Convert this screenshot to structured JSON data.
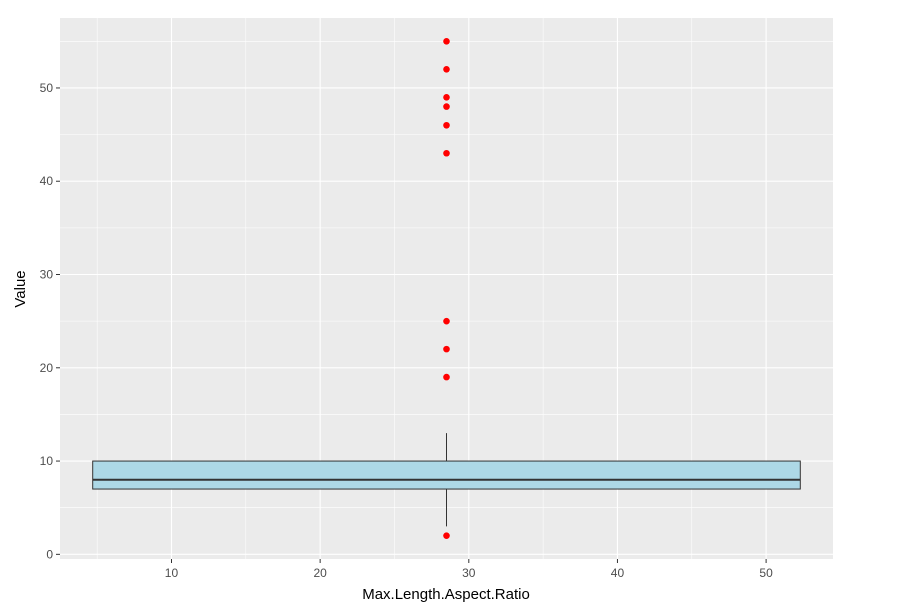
{
  "chart_data": {
    "type": "boxplot",
    "xlabel": "Max.Length.Aspect.Ratio",
    "ylabel": "Value",
    "xlim": [
      2.5,
      54.5
    ],
    "ylim": [
      -0.5,
      57.5
    ],
    "x_ticks": [
      10,
      20,
      30,
      40,
      50
    ],
    "y_ticks": [
      0,
      10,
      20,
      30,
      40,
      50
    ],
    "grid": true,
    "box": {
      "x_center": 28.5,
      "x_left": 4.7,
      "x_right": 52.3,
      "q1": 7,
      "median": 8,
      "q3": 10,
      "whisker_low": 3,
      "whisker_high": 13
    },
    "outliers": [
      2,
      19,
      22,
      25,
      43,
      46,
      48,
      49,
      52,
      55
    ],
    "colors": {
      "panel": "#ebebeb",
      "grid": "#ffffff",
      "box_fill": "#add8e6",
      "box_line": "#333333",
      "outlier": "#ff0000"
    }
  }
}
